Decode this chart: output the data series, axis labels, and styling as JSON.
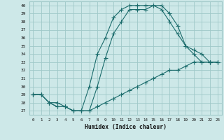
{
  "xlabel": "Humidex (Indice chaleur)",
  "bg_color": "#cde8e8",
  "grid_color": "#9fc8c8",
  "line_color": "#1a6b6b",
  "xlim": [
    -0.5,
    23.5
  ],
  "ylim": [
    26.5,
    40.5
  ],
  "yticks": [
    27,
    28,
    29,
    30,
    31,
    32,
    33,
    34,
    35,
    36,
    37,
    38,
    39,
    40
  ],
  "xticks": [
    0,
    1,
    2,
    3,
    4,
    5,
    6,
    7,
    8,
    9,
    10,
    11,
    12,
    13,
    14,
    15,
    16,
    17,
    18,
    19,
    20,
    21,
    22,
    23
  ],
  "line1_x": [
    0,
    1,
    2,
    3,
    4,
    5,
    6,
    7,
    8,
    9,
    10,
    11,
    12,
    13,
    14,
    15,
    16,
    17,
    18,
    19,
    20,
    21,
    22,
    23
  ],
  "line1_y": [
    29,
    29,
    28,
    28,
    27.5,
    27,
    27,
    27,
    30,
    33.5,
    36.5,
    38,
    39.5,
    39.5,
    39.5,
    40,
    40,
    39,
    37.5,
    35,
    34,
    33,
    33,
    33
  ],
  "line2_x": [
    0,
    1,
    2,
    3,
    4,
    5,
    6,
    7,
    8,
    9,
    10,
    11,
    12,
    13,
    14,
    15,
    16,
    17,
    18,
    19,
    20,
    21,
    22,
    23
  ],
  "line2_y": [
    29,
    29,
    28,
    27.5,
    27.5,
    27,
    27,
    30,
    34,
    36,
    38.5,
    39.5,
    40,
    40,
    40,
    40.0,
    39.5,
    38,
    36.5,
    35,
    34.5,
    34,
    33,
    33
  ],
  "line3_x": [
    0,
    1,
    2,
    3,
    4,
    5,
    6,
    7,
    8,
    9,
    10,
    11,
    12,
    13,
    14,
    15,
    16,
    17,
    18,
    19,
    20,
    21,
    22,
    23
  ],
  "line3_y": [
    29,
    29,
    28,
    27.5,
    27.5,
    27,
    27,
    27,
    27.5,
    28,
    28.5,
    29,
    29.5,
    30,
    30.5,
    31,
    31.5,
    32,
    32,
    32.5,
    33,
    33,
    33,
    33
  ]
}
